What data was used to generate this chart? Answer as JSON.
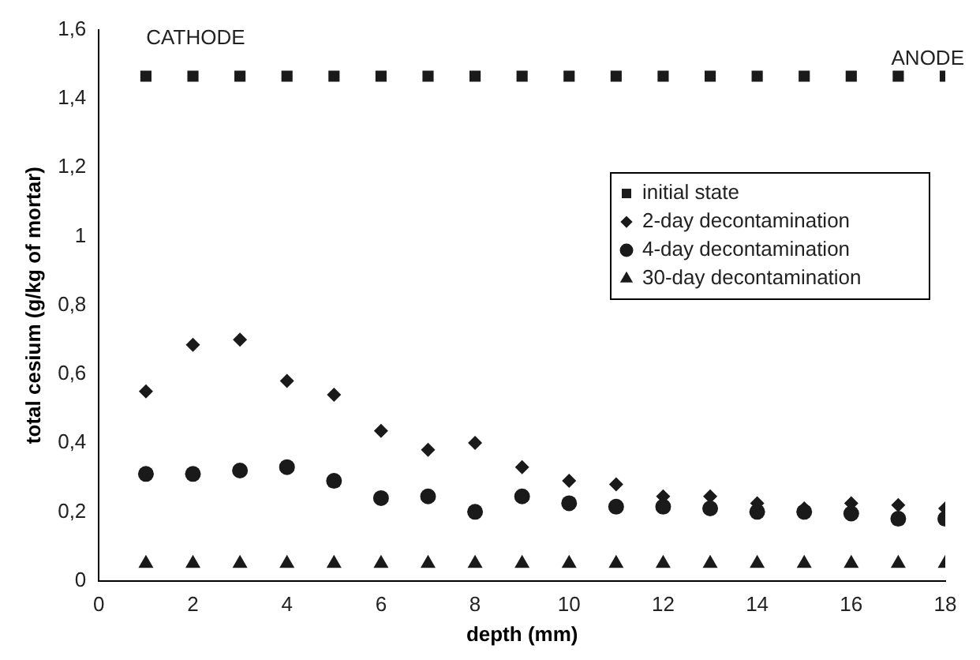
{
  "chart_data": {
    "type": "scatter",
    "xlabel": "depth (mm)",
    "ylabel": "total cesium (g/kg of mortar)",
    "annotations": [
      "CATHODE",
      "ANODE"
    ],
    "x": [
      1,
      2,
      3,
      4,
      5,
      6,
      7,
      8,
      9,
      10,
      11,
      12,
      13,
      14,
      15,
      16,
      17,
      18
    ],
    "xlim": [
      0,
      18
    ],
    "xticks": [
      0,
      2,
      4,
      6,
      8,
      10,
      12,
      14,
      16,
      18
    ],
    "ylim": [
      0,
      1.6
    ],
    "yticks": [
      0,
      {
        "value": 0.2,
        "label": "0,2"
      },
      {
        "value": 0.4,
        "label": "0,4"
      },
      {
        "value": 0.6,
        "label": "0,6"
      },
      {
        "value": 0.8,
        "label": "0,8"
      },
      1,
      {
        "value": 1.2,
        "label": "1,2"
      },
      {
        "value": 1.4,
        "label": "1,4"
      },
      {
        "value": 1.6,
        "label": "1,6"
      }
    ],
    "grid": false,
    "legend": "right",
    "tick_labels": true,
    "series": [
      {
        "name": "initial state",
        "color": "#1a1a1a",
        "marker": "square",
        "values": [
          1.465,
          1.465,
          1.465,
          1.465,
          1.465,
          1.465,
          1.465,
          1.465,
          1.465,
          1.465,
          1.465,
          1.465,
          1.465,
          1.465,
          1.465,
          1.465,
          1.465,
          1.465
        ]
      },
      {
        "name": "2-day decontamination",
        "color": "#1a1a1a",
        "marker": "diamond",
        "values": [
          0.55,
          0.685,
          0.7,
          0.58,
          0.54,
          0.435,
          0.38,
          0.4,
          0.33,
          0.29,
          0.28,
          0.245,
          0.245,
          0.225,
          0.21,
          0.225,
          0.22,
          0.21
        ]
      },
      {
        "name": "4-day decontamination",
        "color": "#1a1a1a",
        "marker": "circle",
        "values": [
          0.31,
          0.31,
          0.32,
          0.33,
          0.29,
          0.24,
          0.245,
          0.2,
          0.245,
          0.225,
          0.215,
          0.215,
          0.21,
          0.2,
          0.2,
          0.195,
          0.18,
          0.18
        ]
      },
      {
        "name": "30-day decontamination",
        "color": "#1a1a1a",
        "marker": "triangle",
        "values": [
          0.05,
          0.05,
          0.05,
          0.05,
          0.05,
          0.05,
          0.05,
          0.05,
          0.05,
          0.05,
          0.05,
          0.05,
          0.05,
          0.05,
          0.05,
          0.05,
          0.05,
          0.05
        ]
      }
    ]
  }
}
